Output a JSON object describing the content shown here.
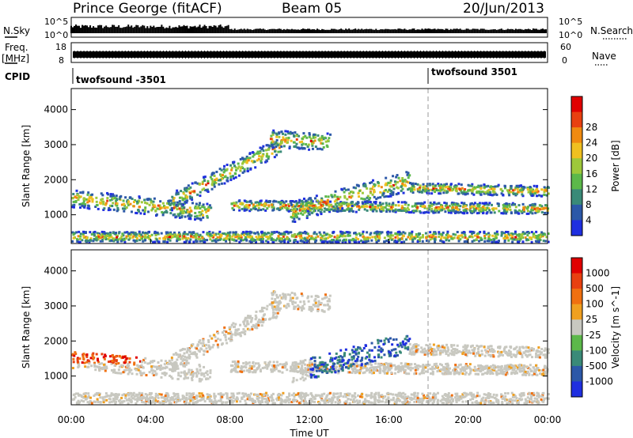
{
  "header": {
    "title": "Prince George (fitACF)",
    "beam": "Beam 05",
    "date": "20/Jun/2013"
  },
  "strips": {
    "nsky_label": "N.Sky",
    "nsearch_label": "N.Search",
    "nsky_ticks": [
      "10^5",
      "10^0"
    ],
    "nsearch_ticks": [
      "10^5",
      "10^0"
    ],
    "freq_label_line1": "Freq.",
    "freq_label_line2": "[MHz]",
    "freq_ticks": [
      "18",
      "8"
    ],
    "nave_label": "Nave",
    "nave_ticks": [
      "60",
      "0"
    ],
    "cpid_label": "CPID",
    "cpid_segments": [
      {
        "label": "twofsound -3501",
        "start_hour": 0
      },
      {
        "label": "twofsound 3501",
        "start_hour": 18
      }
    ]
  },
  "chart_data": [
    {
      "type": "heatmap",
      "name": "power",
      "ylabel": "Slant Range [km]",
      "xlabel": "",
      "xlim": [
        0,
        24
      ],
      "ylim": [
        180,
        4600
      ],
      "yticks": [
        1000,
        2000,
        3000,
        4000
      ],
      "colorbar": {
        "label": "Power [dB]",
        "ticks": [
          "4",
          "8",
          "12",
          "16",
          "20",
          "24",
          "28"
        ],
        "colors": [
          "#1f2fe0",
          "#2c58a8",
          "#3a8a78",
          "#5cb84a",
          "#9ec83a",
          "#f0c020",
          "#f08a10",
          "#e84010",
          "#e00000"
        ]
      }
    },
    {
      "type": "heatmap",
      "name": "velocity",
      "ylabel": "Slant Range [km]",
      "xlabel": "Time UT",
      "xlim": [
        0,
        24
      ],
      "ylim": [
        180,
        4600
      ],
      "yticks": [
        1000,
        2000,
        3000,
        4000
      ],
      "xticks": [
        "00:00",
        "04:00",
        "08:00",
        "12:00",
        "16:00",
        "20:00",
        "00:00"
      ],
      "colorbar": {
        "label": "Velocity [m s^-1]",
        "ticks": [
          "1000",
          "500",
          "100",
          "25",
          "-25",
          "-100",
          "-500",
          "-1000"
        ],
        "colors": [
          "#1f2fe0",
          "#2c58a8",
          "#3a8a78",
          "#5cb84a",
          "#c8c8c0",
          "#f0a020",
          "#f07010",
          "#e84010",
          "#e00000"
        ]
      }
    }
  ]
}
